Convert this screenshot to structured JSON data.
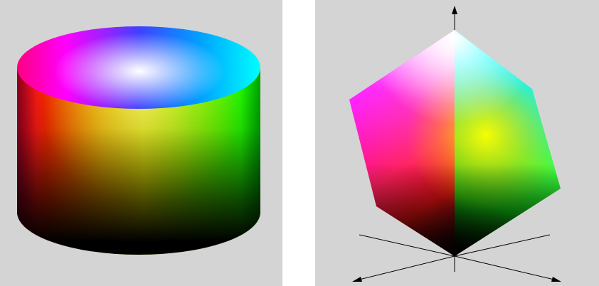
{
  "figure": {
    "left_panel": {
      "shape": "cylinder",
      "colors": {
        "top_center": "#ffffff",
        "hue_wheel": [
          "#ff0000",
          "#ffff00",
          "#00ff00",
          "#00ffff",
          "#0000ff",
          "#ff00ff"
        ],
        "bottom": "#000000",
        "background": "#d4d4d4"
      }
    },
    "right_panel": {
      "shape": "cube",
      "colors": {
        "top_vertex": "#ffffff",
        "magenta": "#ff00ff",
        "cyan": "#00ffff",
        "yellow": "#ffff00",
        "red": "#ff0000",
        "green": "#00ff00",
        "bottom_vertex": "#000000",
        "background": "#d4d4d4",
        "axes": "#000000"
      }
    }
  }
}
